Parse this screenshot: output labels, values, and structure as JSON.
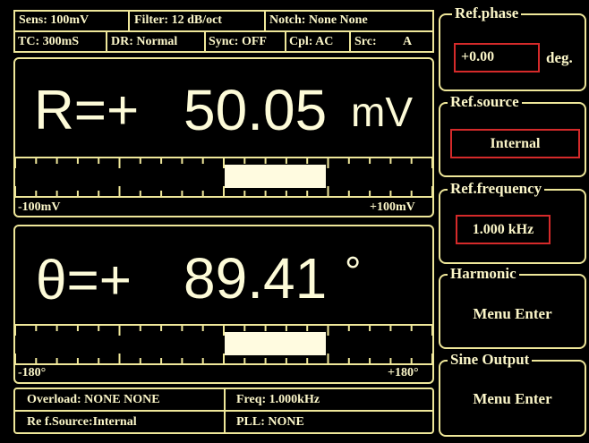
{
  "status_top": {
    "row1": [
      "Sens: 100mV",
      "Filter: 12  dB/oct",
      "Notch: None  None"
    ],
    "row2": [
      "TC: 300mS",
      "DR: Normal",
      "Sync: OFF",
      "Cpl: AC",
      "Src:",
      "A"
    ]
  },
  "r_display": {
    "label": "R=+",
    "value": "50.05",
    "unit": "mV",
    "scale_min": "-100mV",
    "scale_max": "+100mV"
  },
  "theta_display": {
    "label": "θ=+",
    "value": "89.41",
    "unit": "°",
    "scale_min": "-180°",
    "scale_max": "+180°"
  },
  "status_bottom": {
    "overload": "Overload: NONE   NONE",
    "freq": "Freq: 1.000kHz",
    "ref_source": "Re f.Source:Internal",
    "pll": "PLL:  NONE"
  },
  "menu": [
    {
      "title": "Ref.phase",
      "field": "+0.00",
      "unit": "deg."
    },
    {
      "title": "Ref.source",
      "field": "Internal"
    },
    {
      "title": "Ref.frequency",
      "field": "1.000 kHz"
    },
    {
      "title": "Harmonic",
      "action": "Menu Enter"
    },
    {
      "title": "Sine Output",
      "action": "Menu Enter"
    }
  ]
}
